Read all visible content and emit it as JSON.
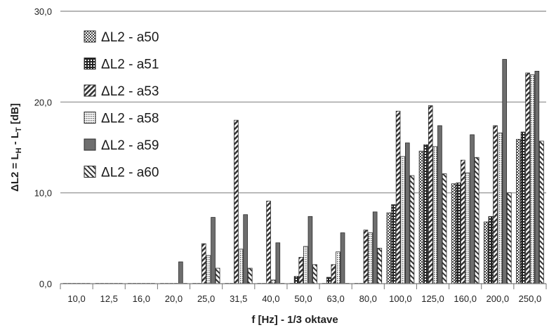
{
  "chart_data": {
    "type": "bar",
    "title": "",
    "xlabel": "f [Hz] - 1/3 oktave",
    "ylabel_parts": {
      "a": "ΔL2 = L",
      "b": "H",
      "c": " - L",
      "d": "T",
      "e": " [dB]"
    },
    "ylim": [
      0,
      30
    ],
    "yticks": [
      "0,0",
      "10,0",
      "20,0",
      "30,0"
    ],
    "grid": true,
    "legend_position": "top-left",
    "categories": [
      "10,0",
      "12,5",
      "16,0",
      "20,0",
      "25,0",
      "31,5",
      "40,0",
      "50,0",
      "63,0",
      "80,0",
      "100,0",
      "125,0",
      "160,0",
      "200,0",
      "250,0"
    ],
    "series": [
      {
        "name": "ΔL2 - a50",
        "pattern": "checker",
        "values": [
          0,
          0,
          0,
          0,
          0,
          0,
          0,
          0,
          0,
          0,
          7.8,
          14.6,
          11,
          6.8,
          15.9
        ]
      },
      {
        "name": "ΔL2 - a51",
        "pattern": "grid",
        "values": [
          0,
          0,
          0,
          0,
          0,
          0,
          0,
          0.8,
          0.7,
          0,
          8.7,
          15.3,
          11.1,
          7.4,
          16.7
        ]
      },
      {
        "name": "ΔL2 - a53",
        "pattern": "diagonal",
        "values": [
          0,
          0,
          0,
          0,
          4.4,
          18,
          9.1,
          2.9,
          2.1,
          5.9,
          19,
          19.6,
          13.6,
          17.4,
          23.2
        ]
      },
      {
        "name": "ΔL2 - a58",
        "pattern": "dots",
        "values": [
          0,
          0,
          0,
          0,
          3.1,
          3.8,
          0.4,
          4.1,
          3.5,
          5.6,
          14,
          15.1,
          12.2,
          16.6,
          23
        ]
      },
      {
        "name": "ΔL2 - a59",
        "pattern": "solid",
        "values": [
          0,
          0,
          0,
          2.4,
          7.3,
          7.6,
          4.5,
          7.4,
          5.6,
          7.9,
          15.5,
          17.4,
          16.4,
          24.7,
          23.4
        ]
      },
      {
        "name": "ΔL2 - a60",
        "pattern": "hatch",
        "values": [
          0,
          0,
          0,
          0,
          1.7,
          1.7,
          0,
          2.1,
          0,
          3.9,
          11.9,
          12.1,
          13.9,
          10,
          15.7
        ]
      }
    ]
  }
}
